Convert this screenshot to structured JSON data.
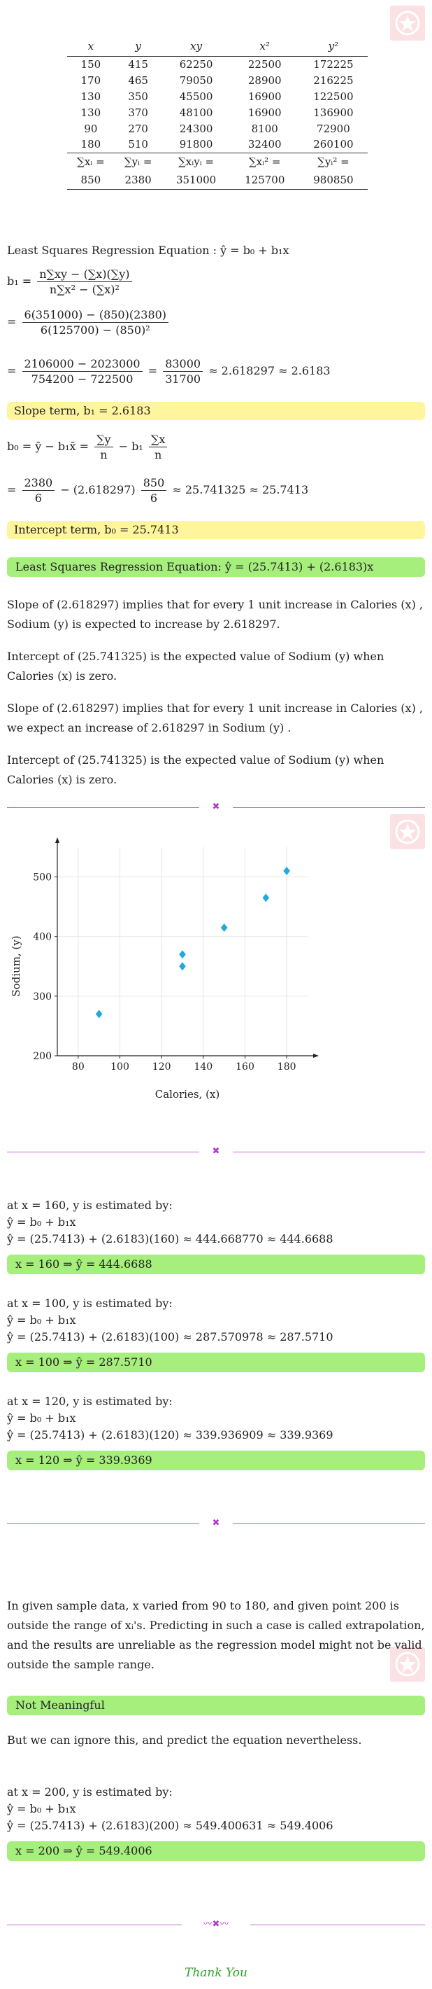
{
  "table": {
    "headers": [
      "x",
      "y",
      "xy",
      "x²",
      "y²"
    ],
    "rows": [
      [
        "150",
        "415",
        "62250",
        "22500",
        "172225"
      ],
      [
        "170",
        "465",
        "79050",
        "28900",
        "216225"
      ],
      [
        "130",
        "350",
        "45500",
        "16900",
        "122500"
      ],
      [
        "130",
        "370",
        "48100",
        "16900",
        "136900"
      ],
      [
        "90",
        "270",
        "24300",
        "8100",
        "72900"
      ],
      [
        "180",
        "510",
        "91800",
        "32400",
        "260100"
      ]
    ],
    "sum_labels": [
      "∑xᵢ =",
      "∑yᵢ =",
      "∑xᵢyᵢ =",
      "∑xᵢ² =",
      "∑yᵢ² ="
    ],
    "totals": [
      "850",
      "2380",
      "351000",
      "125700",
      "980850"
    ]
  },
  "regression": {
    "title": "Least Squares Regression Equation : ŷ = b₀ + b₁x",
    "b1_lhs": "b₁ =",
    "b1_formula_num": "n∑xy − (∑x)(∑y)",
    "b1_formula_den": "n∑x² − (∑x)²",
    "b1_sub_num": "6(351000) − (850)(2380)",
    "b1_sub_den": "6(125700) − (850)²",
    "b1_calc_num": "2106000 − 2023000",
    "b1_calc_den": "754200 − 722500",
    "b1_ratio_num": "83000",
    "b1_ratio_den": "31700",
    "b1_result": "≈ 2.618297 ≈ 2.6183",
    "eq": "=",
    "slope_box": "Slope term, b₁ = 2.6183",
    "b0_lhs": "b₀ = ȳ − b₁x̄ =",
    "b0_f1_num": "∑y",
    "b0_f1_den": "n",
    "b0_minus": "− b₁",
    "b0_f2_num": "∑x",
    "b0_f2_den": "n",
    "b0_sub1_num": "2380",
    "b0_sub1_den": "6",
    "b0_sub_mid": "− (2.618297)",
    "b0_sub2_num": "850",
    "b0_sub2_den": "6",
    "b0_result": "≈ 25.741325 ≈ 25.7413",
    "intercept_box": "Intercept term, b₀ = 25.7413",
    "equation_box": "Least Squares Regression Equation:  ŷ = (25.7413) + (2.6183)x"
  },
  "interpretation": [
    "Slope of (2.618297) implies that for every 1 unit increase in Calories (x) , Sodium (y) is expected to increase by 2.618297.",
    "Intercept of (25.741325) is the expected value of Sodium (y) when Calories (x) is zero.",
    "Slope of (2.618297) implies that for every 1 unit increase in Calories (x) , we expect an increase of 2.618297 in Sodium (y) .",
    "Intercept of (25.741325) is the expected value of Sodium (y) when Calories (x) is zero."
  ],
  "chart_data": {
    "type": "scatter",
    "xlabel": "Calories, (x)",
    "ylabel": "Sodium, (y)",
    "xlim": [
      70,
      190
    ],
    "ylim": [
      200,
      550
    ],
    "x_ticks": [
      80,
      100,
      120,
      140,
      160,
      180
    ],
    "y_ticks": [
      200,
      300,
      400,
      500
    ],
    "grid": true,
    "marker_color": "#1fa9e0",
    "points": [
      {
        "x": 150,
        "y": 415
      },
      {
        "x": 170,
        "y": 465
      },
      {
        "x": 130,
        "y": 350
      },
      {
        "x": 130,
        "y": 370
      },
      {
        "x": 90,
        "y": 270
      },
      {
        "x": 180,
        "y": 510
      }
    ]
  },
  "estimates": [
    {
      "intro": "at x = 160, y is estimated by:",
      "formula": "ŷ = b₀ + b₁x",
      "calc": "ŷ = (25.7413) + (2.6183)(160) ≈ 444.668770 ≈ 444.6688",
      "result": "x = 160 ⇒ ŷ = 444.6688"
    },
    {
      "intro": "at x = 100, y is estimated by:",
      "formula": "ŷ = b₀ + b₁x",
      "calc": "ŷ = (25.7413) + (2.6183)(100) ≈ 287.570978 ≈ 287.5710",
      "result": "x = 100 ⇒ ŷ = 287.5710"
    },
    {
      "intro": "at x = 120, y is estimated by:",
      "formula": "ŷ = b₀ + b₁x",
      "calc": "ŷ = (25.7413) + (2.6183)(120) ≈ 339.936909 ≈ 339.9369",
      "result": "x = 120 ⇒ ŷ = 339.9369"
    }
  ],
  "extrapolation": {
    "text": "In given sample data, x varied from 90 to 180, and given point 200 is outside the range of xᵢ's. Predicting in such a case is called extrapolation, and the results are unreliable as the regression model might not be valid outside the sample range.",
    "box": "Not Meaningful",
    "note": "But we can ignore this, and predict the equation nevertheless.",
    "intro": "at x = 200, y is estimated by:",
    "formula": "ŷ = b₀ + b₁x",
    "calc": "ŷ = (25.7413) + (2.6183)(200) ≈ 549.400631 ≈ 549.4006",
    "result": "x = 200 ⇒ ŷ = 549.4006"
  },
  "footer": {
    "thanks": "Thank You"
  },
  "colors": {
    "yellow": "#fff59d",
    "green": "#a6ef7c",
    "separator": "#c26bd1",
    "watermark": "#fbe1e4"
  }
}
